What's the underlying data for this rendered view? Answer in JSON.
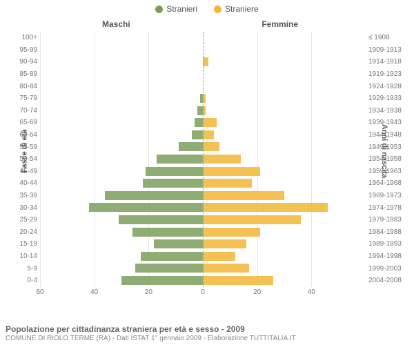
{
  "legend": {
    "male": "Stranieri",
    "female": "Straniere"
  },
  "columns": {
    "male": "Maschi",
    "female": "Femmine"
  },
  "axis_titles": {
    "left": "Fasce di età",
    "right": "Anni di nascita"
  },
  "colors": {
    "male": "#7a9e5a",
    "female": "#f2b736",
    "grid": "#e6e6e6",
    "centerline": "#999999",
    "bg": "#ffffff"
  },
  "xlim": 60,
  "xticks_left": [
    60,
    40,
    20,
    0
  ],
  "xticks_right": [
    0,
    20,
    40
  ],
  "rows": [
    {
      "age": "100+",
      "birth": "≤ 1908",
      "m": 0,
      "f": 0
    },
    {
      "age": "95-99",
      "birth": "1909-1913",
      "m": 0,
      "f": 0
    },
    {
      "age": "90-94",
      "birth": "1914-1918",
      "m": 0,
      "f": 2
    },
    {
      "age": "85-89",
      "birth": "1919-1923",
      "m": 0,
      "f": 0
    },
    {
      "age": "80-84",
      "birth": "1924-1928",
      "m": 0,
      "f": 0
    },
    {
      "age": "75-79",
      "birth": "1929-1933",
      "m": 1,
      "f": 1
    },
    {
      "age": "70-74",
      "birth": "1934-1938",
      "m": 2,
      "f": 1
    },
    {
      "age": "65-69",
      "birth": "1939-1943",
      "m": 3,
      "f": 5
    },
    {
      "age": "60-64",
      "birth": "1944-1948",
      "m": 4,
      "f": 4
    },
    {
      "age": "55-59",
      "birth": "1949-1953",
      "m": 9,
      "f": 6
    },
    {
      "age": "50-54",
      "birth": "1954-1958",
      "m": 17,
      "f": 14
    },
    {
      "age": "45-49",
      "birth": "1959-1963",
      "m": 21,
      "f": 21
    },
    {
      "age": "40-44",
      "birth": "1964-1968",
      "m": 22,
      "f": 18
    },
    {
      "age": "35-39",
      "birth": "1969-1973",
      "m": 36,
      "f": 30
    },
    {
      "age": "30-34",
      "birth": "1974-1978",
      "m": 42,
      "f": 46
    },
    {
      "age": "25-29",
      "birth": "1979-1983",
      "m": 31,
      "f": 36
    },
    {
      "age": "20-24",
      "birth": "1984-1988",
      "m": 26,
      "f": 21
    },
    {
      "age": "15-19",
      "birth": "1989-1993",
      "m": 18,
      "f": 16
    },
    {
      "age": "10-14",
      "birth": "1994-1998",
      "m": 23,
      "f": 12
    },
    {
      "age": "5-9",
      "birth": "1999-2003",
      "m": 25,
      "f": 17
    },
    {
      "age": "0-4",
      "birth": "2004-2008",
      "m": 30,
      "f": 26
    }
  ],
  "caption": {
    "title": "Popolazione per cittadinanza straniera per età e sesso - 2009",
    "sub": "COMUNE DI RIOLO TERME (RA) - Dati ISTAT 1° gennaio 2009 - Elaborazione TUTTITALIA.IT"
  }
}
